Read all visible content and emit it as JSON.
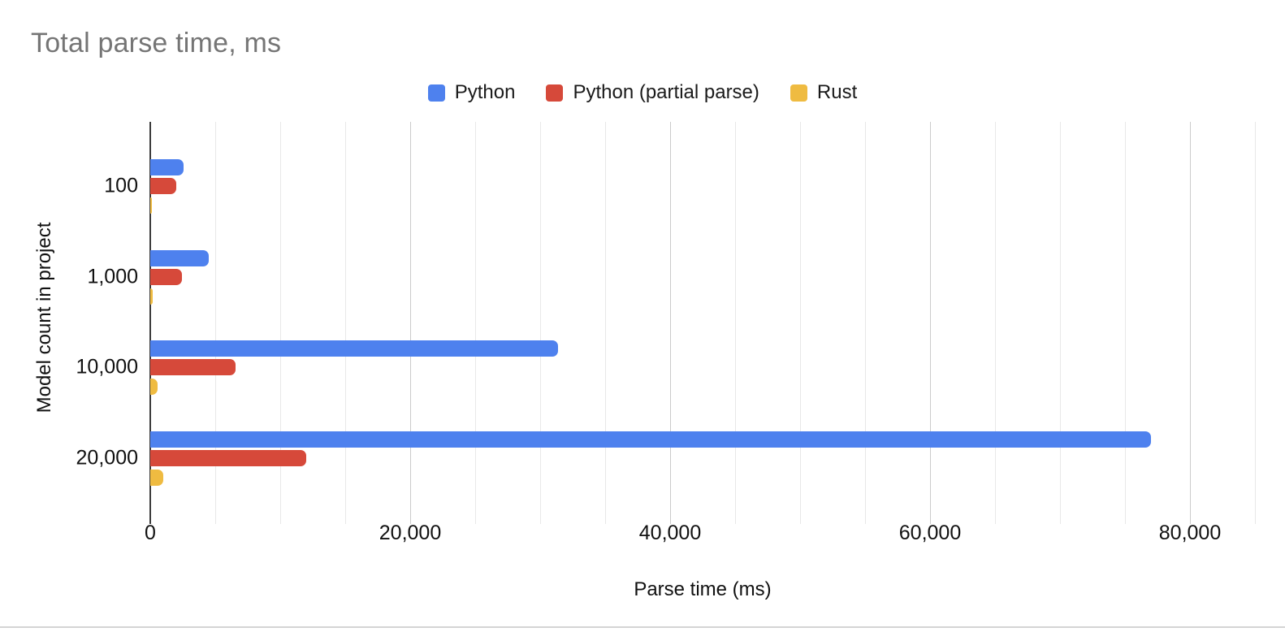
{
  "title": {
    "text": "Total parse time, ms",
    "color": "#757575"
  },
  "legend": {
    "items": [
      {
        "label": "Python",
        "color": "#4e81ee"
      },
      {
        "label": "Python (partial parse)",
        "color": "#d6493a"
      },
      {
        "label": "Rust",
        "color": "#efbb41"
      }
    ]
  },
  "chart_data": {
    "type": "bar",
    "orientation": "horizontal",
    "title": "Total parse time, ms",
    "categories": [
      "100",
      "1,000",
      "10,000",
      "20,000"
    ],
    "series": [
      {
        "name": "Python",
        "color": "#4e81ee",
        "values": [
          2550,
          4500,
          31400,
          77000
        ]
      },
      {
        "name": "Python (partial parse)",
        "color": "#d6493a",
        "values": [
          2000,
          2450,
          6550,
          12000
        ]
      },
      {
        "name": "Rust",
        "color": "#efbb41",
        "values": [
          150,
          160,
          590,
          980
        ]
      }
    ],
    "xlabel": "Parse time (ms)",
    "ylabel": "Model count in project",
    "x_axis": {
      "min": 0,
      "max": 85000,
      "major_tick_step": 20000,
      "minor_grid_step": 5000,
      "tick_labels": [
        "0",
        "20,000",
        "40,000",
        "60,000",
        "80,000"
      ]
    },
    "grid": {
      "on": true,
      "minor_color": "#e8e8e8",
      "major_color": "#cbcbcb",
      "axis_color": "#3b3b3b"
    },
    "legend_position": "top"
  }
}
